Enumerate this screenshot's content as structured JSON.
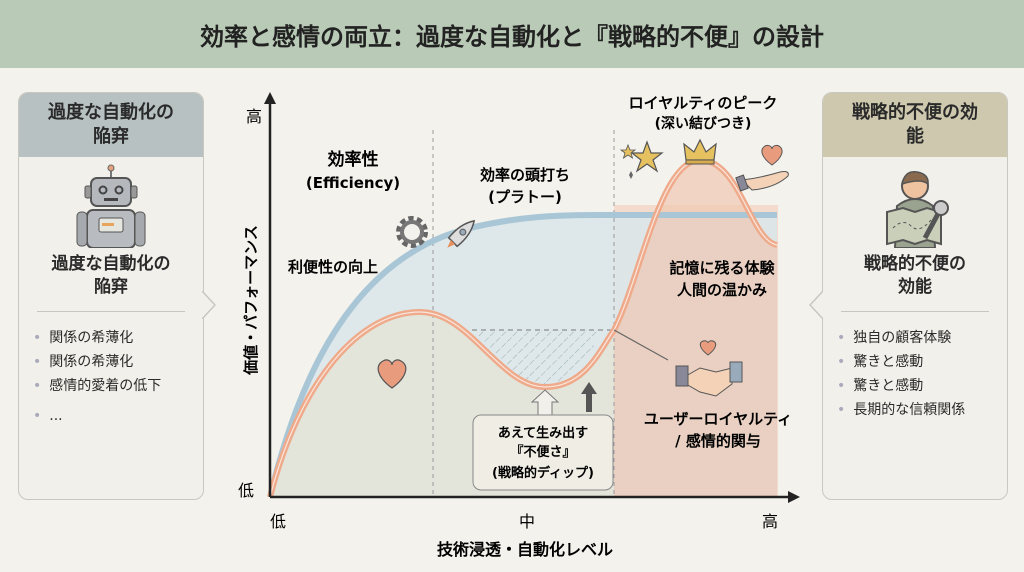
{
  "title": "効率と感情の両立：過度な自動化と『戦略的不便』の設計",
  "left_panel": {
    "heading": "過度な自動化の陥穽",
    "icon": "robot-icon",
    "subtitle_line1": "過度な自動化の",
    "subtitle_line2": "陥穽",
    "items": [
      "関係の希薄化",
      "関係の希薄化",
      "感情的愛着の低下",
      "..."
    ]
  },
  "right_panel": {
    "heading": "戦略的不便の効能",
    "icon": "person-with-map-icon",
    "subtitle_line1": "戦略的不便の",
    "subtitle_line2": "効能",
    "items": [
      "独自の顧客体験",
      "驚きと感動",
      "驚きと感動",
      "長期的な信頼関係"
    ]
  },
  "chart": {
    "y_axis_label": "価値・パフォーマンス",
    "y_high": "高",
    "y_low": "低",
    "x_axis_label": "技術浸透・自動化レベル",
    "x_low": "低",
    "x_mid": "中",
    "x_high": "高",
    "efficiency_title": "効率性",
    "efficiency_sub": "(Efficiency)",
    "plateau_title": "効率の頭打ち",
    "plateau_sub": "(プラトー)",
    "convenience": "利便性の向上",
    "peak_title": "ロイヤルティのピーク",
    "peak_sub": "(深い結びつき)",
    "memorable": "記憶に残る体験",
    "warmth": "人間の温かみ",
    "loyalty_line1": "ユーザーロイヤルティ",
    "loyalty_line2": "/ 感情的関与",
    "dip_line1": "あえて生み出す",
    "dip_line2": "『不便さ』",
    "dip_line3": "(戦略的ディップ)",
    "colors": {
      "efficiency": "#a9c6d6",
      "loyalty": "#eeaa8a",
      "header": "#b9cbb6"
    }
  }
}
